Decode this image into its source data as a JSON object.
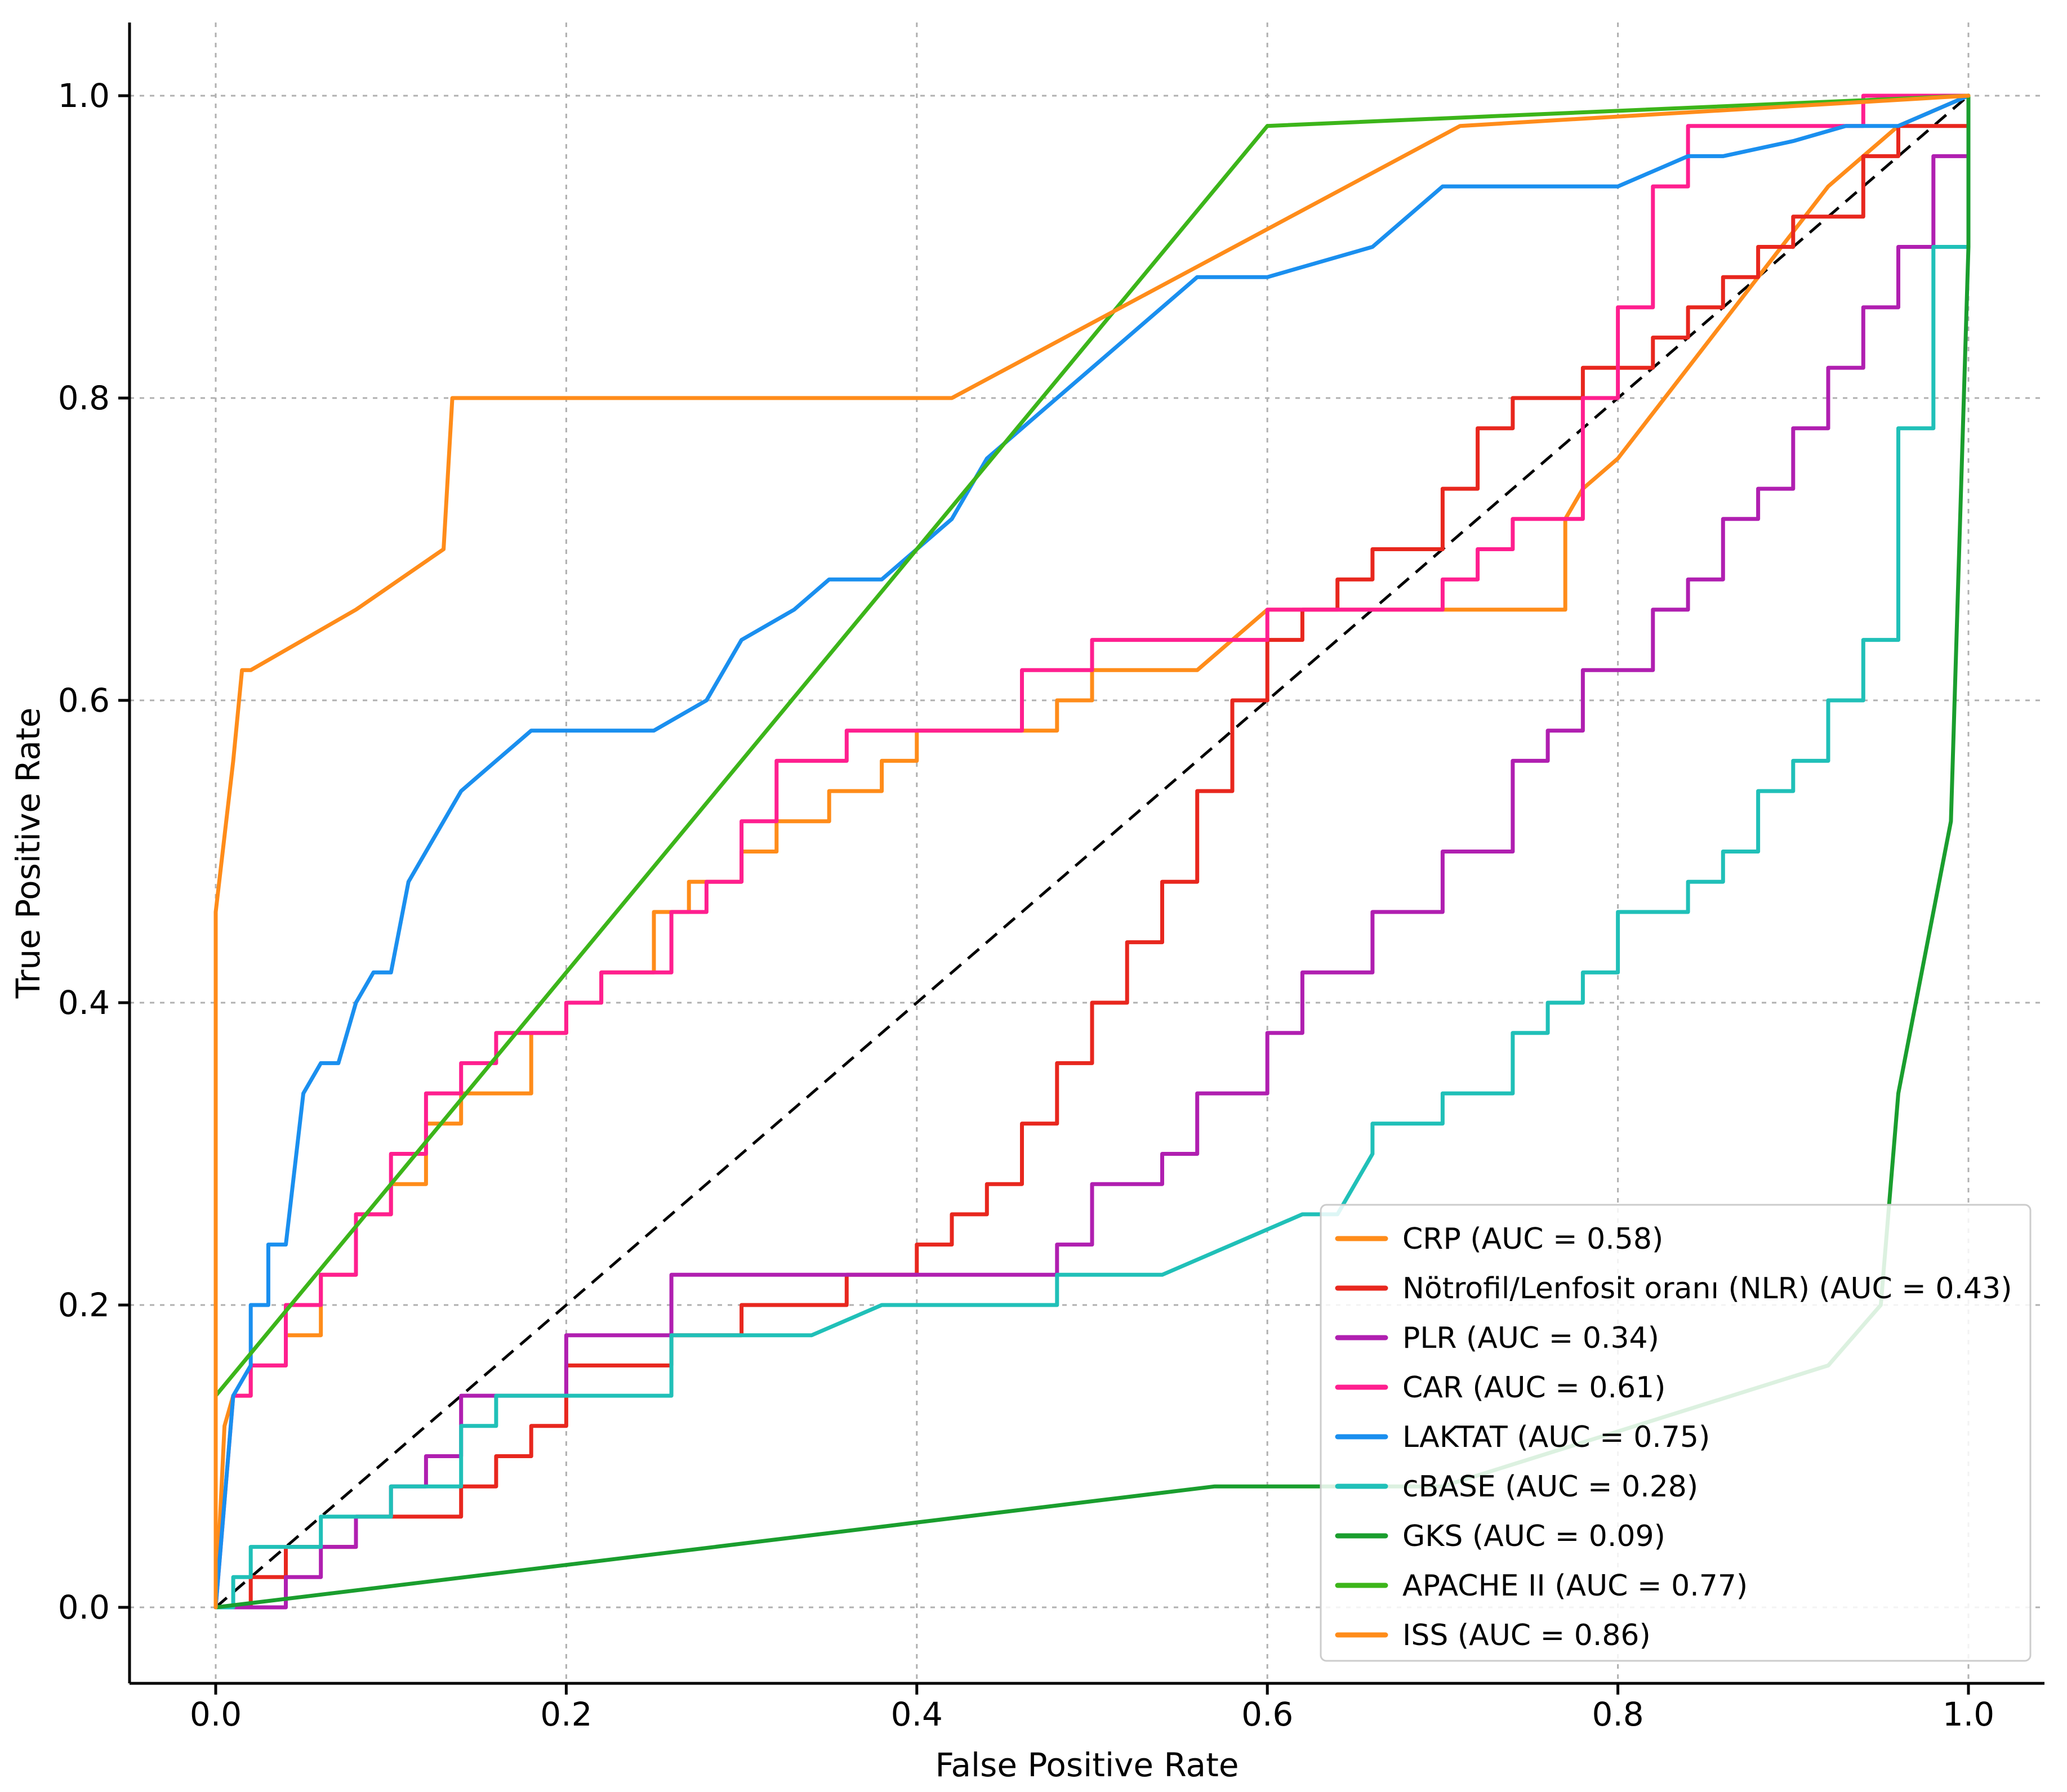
{
  "chart_data": {
    "type": "line",
    "title": "",
    "xlabel": "False Positive Rate",
    "ylabel": "True Positive Rate",
    "xlim": [
      -0.05,
      1.05
    ],
    "ylim": [
      -0.05,
      1.05
    ],
    "xticks": [
      0.0,
      0.2,
      0.4,
      0.6,
      0.8,
      1.0
    ],
    "yticks": [
      0.0,
      0.2,
      0.4,
      0.6,
      0.8,
      1.0
    ],
    "xtick_labels": [
      "0.0",
      "0.2",
      "0.4",
      "0.6",
      "0.8",
      "1.0"
    ],
    "ytick_labels": [
      "0.0",
      "0.2",
      "0.4",
      "0.6",
      "0.8",
      "1.0"
    ],
    "grid": true,
    "legend_position": "lower-right",
    "diagonal": {
      "x": [
        0,
        1
      ],
      "y": [
        0,
        1
      ],
      "style": "dashed",
      "color": "#000000"
    },
    "series": [
      {
        "name": "CRP (AUC = 0.58)",
        "color": "#ff8c1a",
        "x": [
          0,
          0.005,
          0.01,
          0.02,
          0.02,
          0.04,
          0.04,
          0.06,
          0.06,
          0.08,
          0.08,
          0.1,
          0.1,
          0.12,
          0.12,
          0.14,
          0.14,
          0.18,
          0.18,
          0.2,
          0.2,
          0.22,
          0.22,
          0.25,
          0.25,
          0.27,
          0.27,
          0.3,
          0.3,
          0.32,
          0.32,
          0.35,
          0.35,
          0.38,
          0.38,
          0.4,
          0.4,
          0.42,
          0.42,
          0.48,
          0.48,
          0.5,
          0.5,
          0.52,
          0.52,
          0.56,
          0.6,
          0.6,
          0.7,
          0.7,
          0.77,
          0.77,
          0.78,
          0.8,
          0.84,
          0.88,
          0.92,
          0.96,
          1.0
        ],
        "y": [
          0,
          0.12,
          0.14,
          0.14,
          0.16,
          0.16,
          0.18,
          0.18,
          0.22,
          0.22,
          0.26,
          0.26,
          0.28,
          0.28,
          0.32,
          0.32,
          0.34,
          0.34,
          0.38,
          0.38,
          0.4,
          0.4,
          0.42,
          0.42,
          0.46,
          0.46,
          0.48,
          0.48,
          0.5,
          0.5,
          0.52,
          0.52,
          0.54,
          0.54,
          0.56,
          0.56,
          0.58,
          0.58,
          0.58,
          0.58,
          0.6,
          0.6,
          0.62,
          0.62,
          0.62,
          0.62,
          0.66,
          0.66,
          0.66,
          0.66,
          0.66,
          0.72,
          0.74,
          0.76,
          0.82,
          0.88,
          0.94,
          0.98,
          1.0
        ]
      },
      {
        "name": "Nötrofil/Lenfosit oranı (NLR) (AUC = 0.43)",
        "color": "#e8271e",
        "x": [
          0,
          0.02,
          0.02,
          0.04,
          0.04,
          0.06,
          0.06,
          0.08,
          0.08,
          0.1,
          0.1,
          0.14,
          0.14,
          0.16,
          0.16,
          0.18,
          0.18,
          0.2,
          0.2,
          0.26,
          0.26,
          0.3,
          0.3,
          0.36,
          0.36,
          0.4,
          0.4,
          0.42,
          0.42,
          0.44,
          0.44,
          0.46,
          0.46,
          0.48,
          0.48,
          0.5,
          0.5,
          0.52,
          0.52,
          0.54,
          0.54,
          0.56,
          0.56,
          0.58,
          0.58,
          0.6,
          0.6,
          0.62,
          0.62,
          0.64,
          0.64,
          0.66,
          0.66,
          0.7,
          0.7,
          0.72,
          0.72,
          0.74,
          0.74,
          0.78,
          0.78,
          0.82,
          0.82,
          0.84,
          0.84,
          0.86,
          0.86,
          0.88,
          0.88,
          0.9,
          0.9,
          0.94,
          0.94,
          0.96,
          0.96,
          1.0
        ],
        "y": [
          0,
          0,
          0.02,
          0.02,
          0.04,
          0.04,
          0.04,
          0.04,
          0.06,
          0.06,
          0.06,
          0.06,
          0.08,
          0.08,
          0.1,
          0.1,
          0.12,
          0.12,
          0.16,
          0.16,
          0.18,
          0.18,
          0.2,
          0.2,
          0.22,
          0.22,
          0.24,
          0.24,
          0.26,
          0.26,
          0.28,
          0.28,
          0.32,
          0.32,
          0.36,
          0.36,
          0.4,
          0.4,
          0.44,
          0.44,
          0.48,
          0.48,
          0.54,
          0.54,
          0.6,
          0.6,
          0.64,
          0.64,
          0.66,
          0.66,
          0.68,
          0.68,
          0.7,
          0.7,
          0.74,
          0.74,
          0.78,
          0.78,
          0.8,
          0.8,
          0.82,
          0.82,
          0.84,
          0.84,
          0.86,
          0.86,
          0.88,
          0.88,
          0.9,
          0.9,
          0.92,
          0.92,
          0.96,
          0.96,
          0.98,
          0.98
        ]
      },
      {
        "name": "PLR (AUC = 0.34)",
        "color": "#b01fb0",
        "x": [
          0,
          0.04,
          0.04,
          0.06,
          0.06,
          0.08,
          0.08,
          0.1,
          0.1,
          0.12,
          0.12,
          0.14,
          0.14,
          0.16,
          0.16,
          0.18,
          0.18,
          0.2,
          0.2,
          0.26,
          0.26,
          0.34,
          0.34,
          0.48,
          0.48,
          0.5,
          0.5,
          0.54,
          0.54,
          0.56,
          0.56,
          0.6,
          0.6,
          0.62,
          0.62,
          0.66,
          0.66,
          0.7,
          0.7,
          0.74,
          0.74,
          0.76,
          0.76,
          0.78,
          0.78,
          0.82,
          0.82,
          0.84,
          0.84,
          0.86,
          0.86,
          0.88,
          0.88,
          0.9,
          0.9,
          0.92,
          0.92,
          0.94,
          0.94,
          0.96,
          0.96,
          0.98,
          0.98,
          1.0
        ],
        "y": [
          0,
          0,
          0.02,
          0.02,
          0.04,
          0.04,
          0.06,
          0.06,
          0.08,
          0.08,
          0.1,
          0.1,
          0.14,
          0.14,
          0.14,
          0.14,
          0.14,
          0.14,
          0.18,
          0.18,
          0.22,
          0.22,
          0.22,
          0.22,
          0.24,
          0.24,
          0.28,
          0.28,
          0.3,
          0.3,
          0.34,
          0.34,
          0.38,
          0.38,
          0.42,
          0.42,
          0.46,
          0.46,
          0.5,
          0.5,
          0.56,
          0.56,
          0.58,
          0.58,
          0.62,
          0.62,
          0.66,
          0.66,
          0.68,
          0.68,
          0.72,
          0.72,
          0.74,
          0.74,
          0.78,
          0.78,
          0.82,
          0.82,
          0.86,
          0.86,
          0.9,
          0.9,
          0.96,
          0.96
        ]
      },
      {
        "name": "CAR (AUC = 0.61)",
        "color": "#ff1f8f",
        "x": [
          0,
          0.01,
          0.02,
          0.02,
          0.04,
          0.04,
          0.06,
          0.06,
          0.08,
          0.08,
          0.1,
          0.1,
          0.12,
          0.12,
          0.14,
          0.14,
          0.16,
          0.16,
          0.2,
          0.2,
          0.22,
          0.22,
          0.26,
          0.26,
          0.28,
          0.28,
          0.3,
          0.3,
          0.32,
          0.32,
          0.36,
          0.36,
          0.42,
          0.42,
          0.46,
          0.46,
          0.5,
          0.5,
          0.56,
          0.56,
          0.6,
          0.6,
          0.7,
          0.7,
          0.72,
          0.72,
          0.74,
          0.74,
          0.78,
          0.78,
          0.8,
          0.8,
          0.82,
          0.82,
          0.84,
          0.84,
          0.9,
          0.9,
          0.94,
          0.94,
          1.0
        ],
        "y": [
          0,
          0.14,
          0.14,
          0.16,
          0.16,
          0.2,
          0.2,
          0.22,
          0.22,
          0.26,
          0.26,
          0.3,
          0.3,
          0.34,
          0.34,
          0.36,
          0.36,
          0.38,
          0.38,
          0.4,
          0.4,
          0.42,
          0.42,
          0.46,
          0.46,
          0.48,
          0.48,
          0.52,
          0.52,
          0.56,
          0.56,
          0.58,
          0.58,
          0.58,
          0.58,
          0.62,
          0.62,
          0.64,
          0.64,
          0.64,
          0.64,
          0.66,
          0.66,
          0.68,
          0.68,
          0.7,
          0.7,
          0.72,
          0.72,
          0.8,
          0.8,
          0.86,
          0.86,
          0.94,
          0.94,
          0.98,
          0.98,
          0.98,
          0.98,
          1.0,
          1.0
        ]
      },
      {
        "name": "LAKTAT (AUC = 0.75)",
        "color": "#1a8fef",
        "x": [
          0,
          0.01,
          0.02,
          0.02,
          0.03,
          0.03,
          0.04,
          0.05,
          0.06,
          0.07,
          0.08,
          0.08,
          0.09,
          0.1,
          0.11,
          0.12,
          0.13,
          0.14,
          0.15,
          0.16,
          0.17,
          0.18,
          0.19,
          0.2,
          0.25,
          0.28,
          0.3,
          0.33,
          0.35,
          0.38,
          0.42,
          0.44,
          0.46,
          0.5,
          0.52,
          0.56,
          0.6,
          0.66,
          0.68,
          0.7,
          0.8,
          0.82,
          0.84,
          0.86,
          0.9,
          0.93,
          0.96,
          0.98,
          1.0
        ],
        "y": [
          0,
          0.14,
          0.16,
          0.2,
          0.2,
          0.24,
          0.24,
          0.34,
          0.36,
          0.36,
          0.4,
          0.4,
          0.42,
          0.42,
          0.48,
          0.5,
          0.52,
          0.54,
          0.55,
          0.56,
          0.57,
          0.58,
          0.58,
          0.58,
          0.58,
          0.6,
          0.64,
          0.66,
          0.68,
          0.68,
          0.72,
          0.76,
          0.78,
          0.82,
          0.84,
          0.88,
          0.88,
          0.9,
          0.92,
          0.94,
          0.94,
          0.95,
          0.96,
          0.96,
          0.97,
          0.98,
          0.98,
          0.99,
          1.0
        ]
      },
      {
        "name": "cBASE (AUC = 0.28)",
        "color": "#20c0b8",
        "x": [
          0,
          0.01,
          0.01,
          0.02,
          0.02,
          0.04,
          0.06,
          0.06,
          0.08,
          0.08,
          0.1,
          0.1,
          0.12,
          0.12,
          0.14,
          0.14,
          0.16,
          0.16,
          0.2,
          0.26,
          0.26,
          0.34,
          0.34,
          0.38,
          0.48,
          0.48,
          0.54,
          0.58,
          0.62,
          0.64,
          0.64,
          0.66,
          0.66,
          0.7,
          0.7,
          0.74,
          0.74,
          0.76,
          0.76,
          0.78,
          0.78,
          0.8,
          0.8,
          0.84,
          0.84,
          0.86,
          0.86,
          0.88,
          0.88,
          0.9,
          0.9,
          0.92,
          0.92,
          0.94,
          0.94,
          0.96,
          0.96,
          0.98,
          0.98,
          1.0
        ],
        "y": [
          0,
          0,
          0.02,
          0.02,
          0.04,
          0.04,
          0.04,
          0.06,
          0.06,
          0.06,
          0.06,
          0.08,
          0.08,
          0.08,
          0.08,
          0.12,
          0.12,
          0.14,
          0.14,
          0.14,
          0.18,
          0.18,
          0.18,
          0.2,
          0.2,
          0.22,
          0.22,
          0.24,
          0.26,
          0.26,
          0.26,
          0.3,
          0.32,
          0.32,
          0.34,
          0.34,
          0.38,
          0.38,
          0.4,
          0.4,
          0.42,
          0.42,
          0.46,
          0.46,
          0.48,
          0.48,
          0.5,
          0.5,
          0.54,
          0.54,
          0.56,
          0.56,
          0.6,
          0.6,
          0.64,
          0.64,
          0.78,
          0.78,
          0.9,
          0.9
        ]
      },
      {
        "name": "GKS (AUC = 0.09)",
        "color": "#1a9e2e",
        "x": [
          0,
          0.57,
          0.7,
          0.92,
          0.95,
          0.96,
          0.97,
          0.99,
          1.0,
          1.0
        ],
        "y": [
          0,
          0.08,
          0.08,
          0.16,
          0.2,
          0.34,
          0.4,
          0.52,
          0.9,
          1.0
        ]
      },
      {
        "name": "APACHE II (AUC =  0.77)",
        "color": "#3cb51a",
        "x": [
          0,
          0.6,
          1.0
        ],
        "y": [
          0.14,
          0.98,
          1.0
        ]
      },
      {
        "name": "ISS (AUC = 0.86)",
        "color": "#ff8c1a",
        "x": [
          0,
          0,
          0.01,
          0.015,
          0.02,
          0.05,
          0.08,
          0.13,
          0.135,
          0.42,
          0.71,
          1.0
        ],
        "y": [
          0,
          0.46,
          0.56,
          0.62,
          0.62,
          0.64,
          0.66,
          0.7,
          0.8,
          0.8,
          0.98,
          1.0
        ]
      }
    ]
  }
}
